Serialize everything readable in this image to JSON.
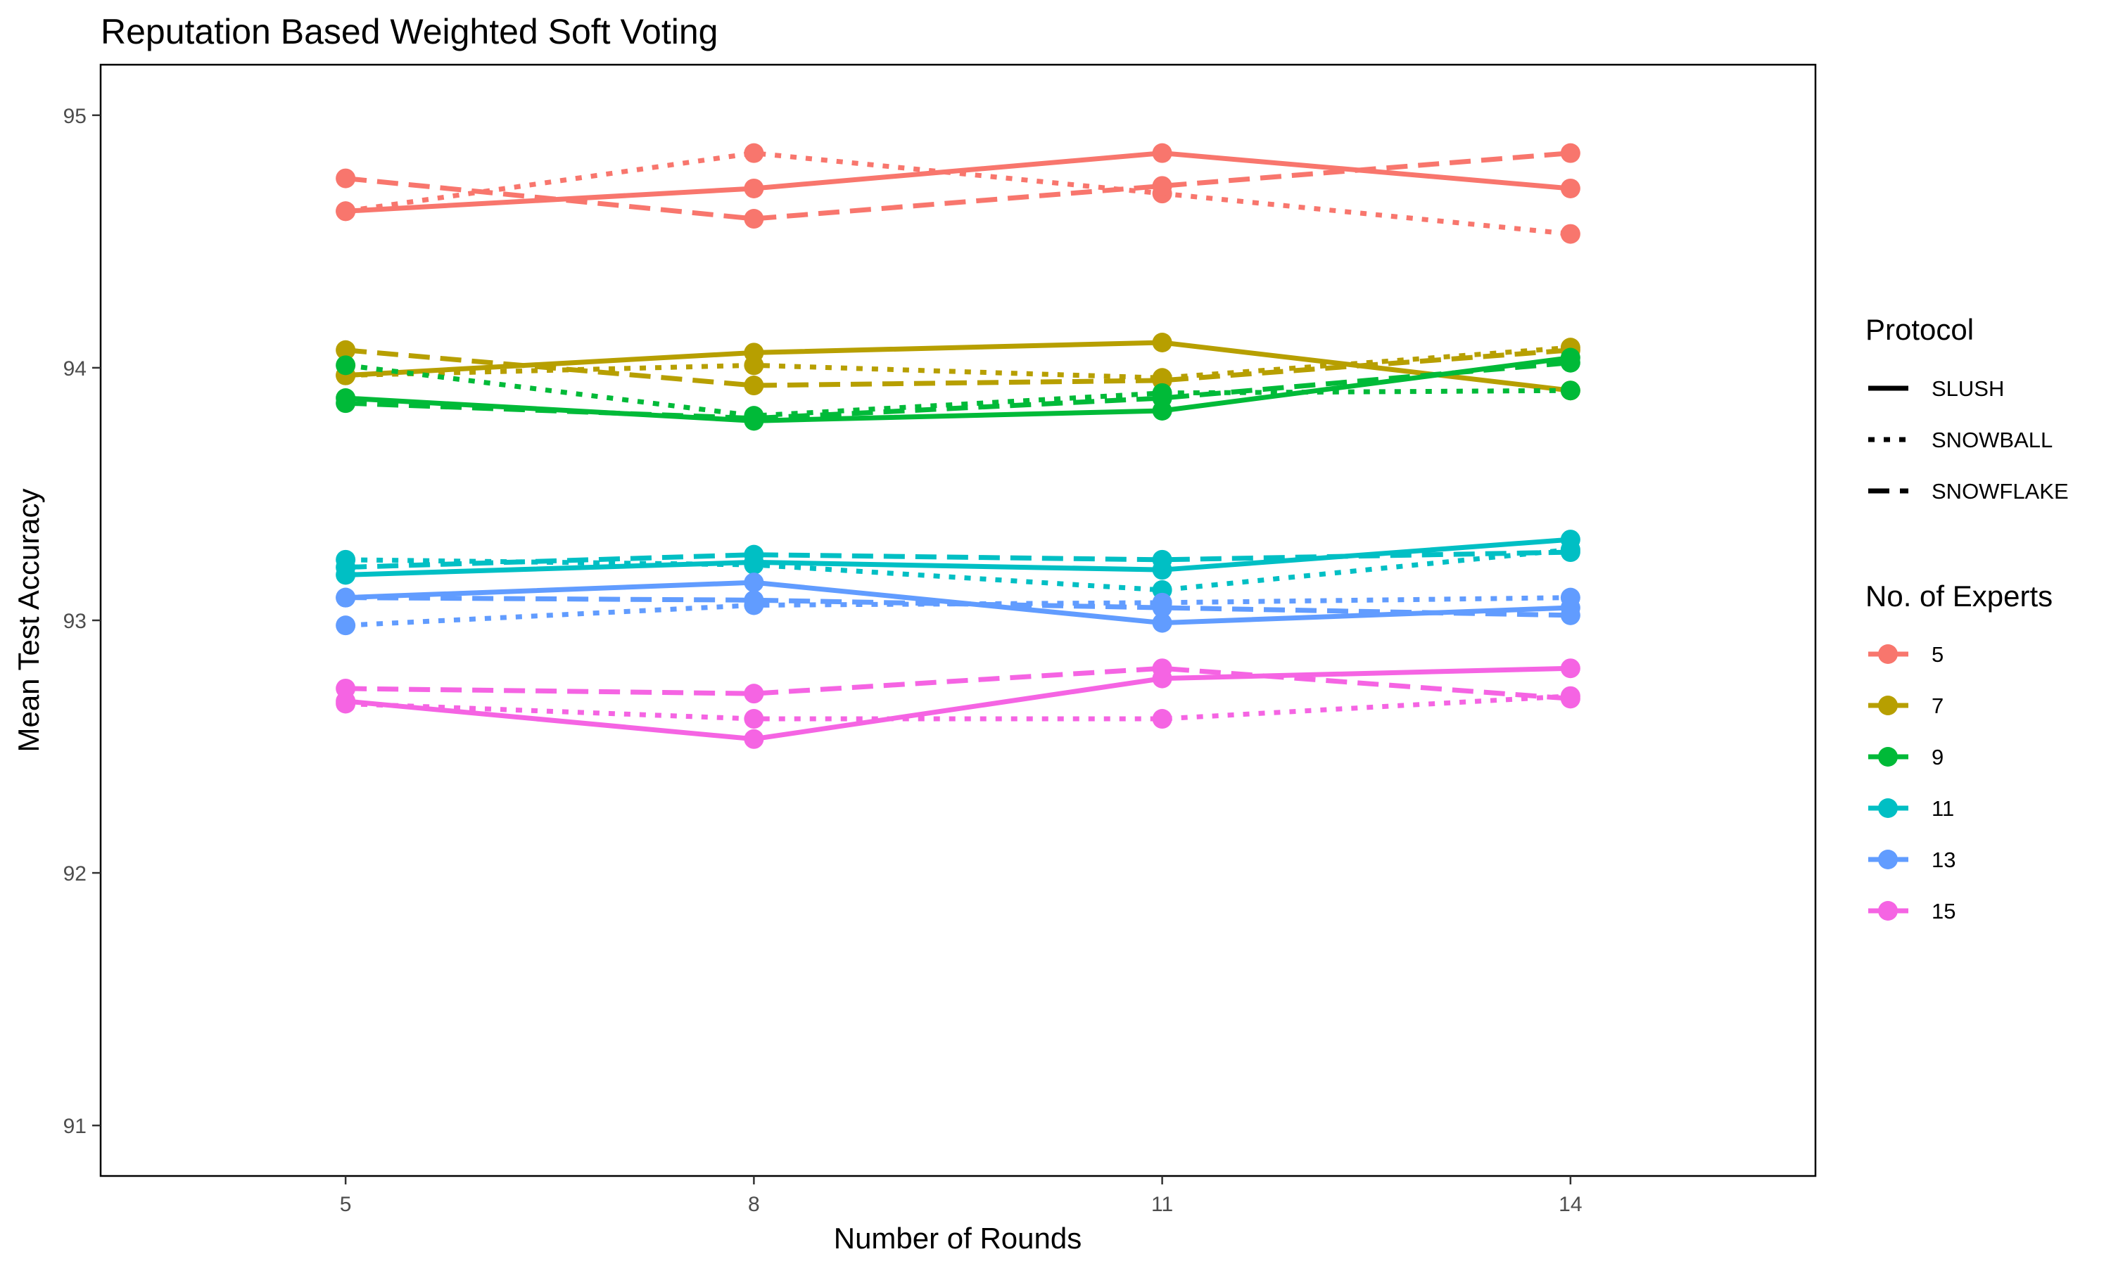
{
  "chart_data": {
    "type": "line",
    "title": "Reputation Based Weighted Soft Voting",
    "xlabel": "Number of Rounds",
    "ylabel": "Mean Test Accuracy",
    "x": [
      5,
      8,
      11,
      14
    ],
    "xlim": [
      3.2,
      15.8
    ],
    "ylim": [
      90.8,
      95.2
    ],
    "yticks": [
      91,
      92,
      93,
      94,
      95
    ],
    "grid": false,
    "legend_placement": "right",
    "protocol_legend": {
      "title": "Protocol",
      "entries": [
        {
          "label": "SLUSH",
          "dash": "solid"
        },
        {
          "label": "SNOWBALL",
          "dash": "dotted"
        },
        {
          "label": "SNOWFLAKE",
          "dash": "dashed"
        }
      ]
    },
    "experts_legend": {
      "title": "No. of Experts",
      "entries": [
        {
          "label": "5",
          "color": "#F8766D"
        },
        {
          "label": "7",
          "color": "#B79F00"
        },
        {
          "label": "9",
          "color": "#00BA38"
        },
        {
          "label": "11",
          "color": "#00BFC4"
        },
        {
          "label": "13",
          "color": "#619CFF"
        },
        {
          "label": "15",
          "color": "#F564E3"
        }
      ]
    },
    "series": [
      {
        "experts": "5",
        "protocol": "SLUSH",
        "color": "#F8766D",
        "dash": "solid",
        "values": [
          94.62,
          94.71,
          94.85,
          94.71
        ]
      },
      {
        "experts": "5",
        "protocol": "SNOWBALL",
        "color": "#F8766D",
        "dash": "dotted",
        "values": [
          94.62,
          94.85,
          94.69,
          94.53
        ]
      },
      {
        "experts": "5",
        "protocol": "SNOWFLAKE",
        "color": "#F8766D",
        "dash": "dashed",
        "values": [
          94.75,
          94.59,
          94.72,
          94.85
        ]
      },
      {
        "experts": "7",
        "protocol": "SLUSH",
        "color": "#B79F00",
        "dash": "solid",
        "values": [
          93.97,
          94.06,
          94.1,
          93.91
        ]
      },
      {
        "experts": "7",
        "protocol": "SNOWBALL",
        "color": "#B79F00",
        "dash": "dotted",
        "values": [
          93.97,
          94.01,
          93.96,
          94.08
        ]
      },
      {
        "experts": "7",
        "protocol": "SNOWFLAKE",
        "color": "#B79F00",
        "dash": "dashed",
        "values": [
          94.07,
          93.93,
          93.95,
          94.07
        ]
      },
      {
        "experts": "9",
        "protocol": "SLUSH",
        "color": "#00BA38",
        "dash": "solid",
        "values": [
          93.88,
          93.79,
          93.83,
          94.04
        ]
      },
      {
        "experts": "9",
        "protocol": "SNOWBALL",
        "color": "#00BA38",
        "dash": "dotted",
        "values": [
          94.01,
          93.81,
          93.9,
          93.91
        ]
      },
      {
        "experts": "9",
        "protocol": "SNOWFLAKE",
        "color": "#00BA38",
        "dash": "dashed",
        "values": [
          93.86,
          93.8,
          93.88,
          94.02
        ]
      },
      {
        "experts": "11",
        "protocol": "SLUSH",
        "color": "#00BFC4",
        "dash": "solid",
        "values": [
          93.18,
          93.23,
          93.2,
          93.32
        ]
      },
      {
        "experts": "11",
        "protocol": "SNOWBALL",
        "color": "#00BFC4",
        "dash": "dotted",
        "values": [
          93.24,
          93.22,
          93.12,
          93.28
        ]
      },
      {
        "experts": "11",
        "protocol": "SNOWFLAKE",
        "color": "#00BFC4",
        "dash": "dashed",
        "values": [
          93.21,
          93.26,
          93.24,
          93.27
        ]
      },
      {
        "experts": "13",
        "protocol": "SLUSH",
        "color": "#619CFF",
        "dash": "solid",
        "values": [
          93.09,
          93.15,
          92.99,
          93.05
        ]
      },
      {
        "experts": "13",
        "protocol": "SNOWBALL",
        "color": "#619CFF",
        "dash": "dotted",
        "values": [
          92.98,
          93.06,
          93.07,
          93.09
        ]
      },
      {
        "experts": "13",
        "protocol": "SNOWFLAKE",
        "color": "#619CFF",
        "dash": "dashed",
        "values": [
          93.09,
          93.08,
          93.05,
          93.02
        ]
      },
      {
        "experts": "15",
        "protocol": "SLUSH",
        "color": "#F564E3",
        "dash": "solid",
        "values": [
          92.68,
          92.53,
          92.77,
          92.81
        ]
      },
      {
        "experts": "15",
        "protocol": "SNOWBALL",
        "color": "#F564E3",
        "dash": "dotted",
        "values": [
          92.67,
          92.61,
          92.61,
          92.7
        ]
      },
      {
        "experts": "15",
        "protocol": "SNOWFLAKE",
        "color": "#F564E3",
        "dash": "dashed",
        "values": [
          92.73,
          92.71,
          92.81,
          92.69
        ]
      }
    ]
  }
}
